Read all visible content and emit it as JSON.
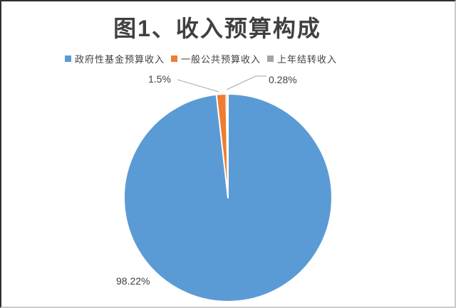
{
  "title": "图1、收入预算构成",
  "chart_data": {
    "type": "pie",
    "title": "图1、收入预算构成",
    "categories": [
      "政府性基金预算收入",
      "一般公共预算收入",
      "上年结转收入"
    ],
    "values": [
      98.22,
      1.5,
      0.28
    ],
    "unit": "percent",
    "data_labels": [
      "98.22%",
      "1.5%",
      "0.28%"
    ],
    "colors": [
      "#5B9BD5",
      "#ED7D31",
      "#A5A5A5"
    ],
    "slice_border_color": "#FFFFFF",
    "leader_line_color": "#A6A6A6",
    "label_color": "#404040",
    "title_color": "#404040",
    "start_angle_deg": 0,
    "direction": "clockwise",
    "legend_position": "top-center",
    "grid": "off"
  }
}
